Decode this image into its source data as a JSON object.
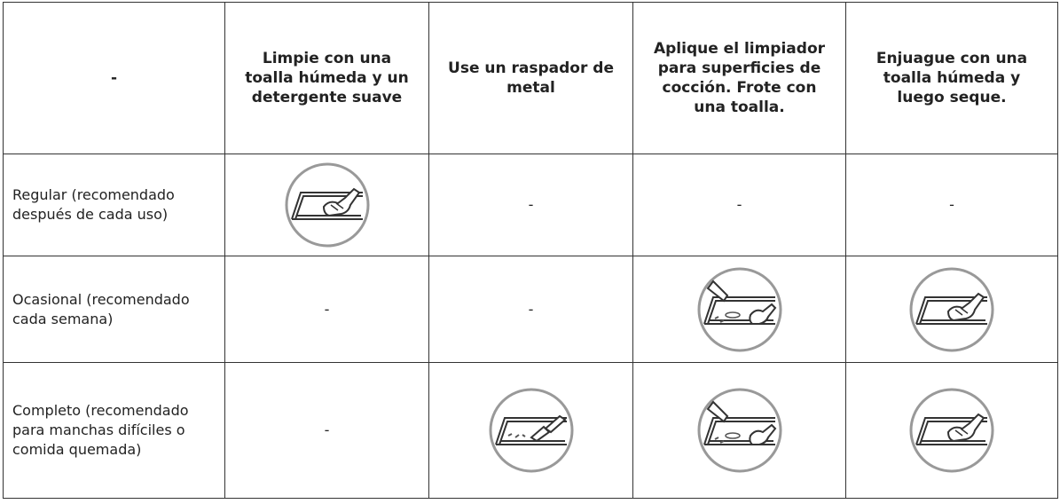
{
  "table": {
    "header": [
      "-",
      "Limpie con una toalla húmeda y un detergente suave",
      "Use un raspador de metal",
      "Aplique el limpiador para superficies de cocción. Frote con una toalla.",
      "Enjuague con una toalla húmeda y luego seque."
    ],
    "rows": [
      {
        "label": "Regular (recomendado después de cada uso)",
        "marks": [
          "-",
          "-",
          "-"
        ]
      },
      {
        "label": "Ocasional (recomendado cada semana)",
        "marks": [
          "-",
          "-"
        ]
      },
      {
        "label": "Completo (recomendado para manchas difíciles o comida quemada)",
        "marks": [
          "-"
        ]
      }
    ]
  }
}
